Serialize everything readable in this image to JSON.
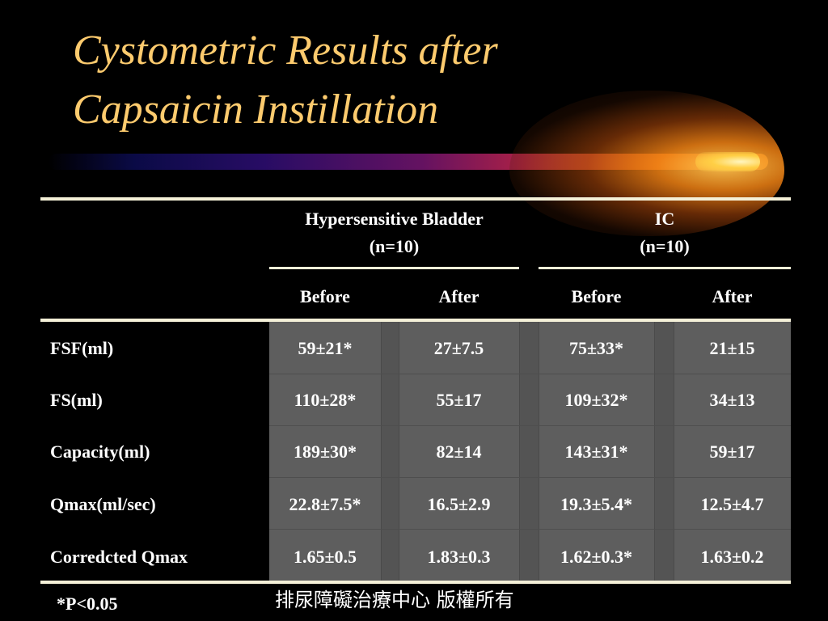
{
  "slide": {
    "title_line1": "Cystometric Results after",
    "title_line2": "Capsaicin Instillation",
    "title_color": "#FDCB6E"
  },
  "table": {
    "groups": [
      {
        "name": "Hypersensitive Bladder",
        "n": "(n=10)"
      },
      {
        "name": "IC",
        "n": "(n=10)"
      }
    ],
    "subheaders": [
      "Before",
      "After",
      "Before",
      "After"
    ],
    "rows": [
      {
        "label": "FSF(ml)",
        "values": [
          "59±21*",
          "27±7.5",
          "75±33*",
          "21±15"
        ]
      },
      {
        "label": "FS(ml)",
        "values": [
          "110±28*",
          "55±17",
          "109±32*",
          "34±13"
        ]
      },
      {
        "label": "Capacity(ml)",
        "values": [
          "189±30*",
          "82±14",
          "143±31*",
          "59±17"
        ]
      },
      {
        "label": "Qmax(ml/sec)",
        "values": [
          "22.8±7.5*",
          "16.5±2.9",
          "19.3±5.4*",
          "12.5±4.7"
        ]
      },
      {
        "label": "Corredcted Qmax",
        "values": [
          "1.65±0.5",
          "1.83±0.3",
          "1.62±0.3*",
          "1.63±0.2"
        ]
      }
    ]
  },
  "footnote": "*P<0.05",
  "copyright": "排尿障礙治療中心 版權所有"
}
